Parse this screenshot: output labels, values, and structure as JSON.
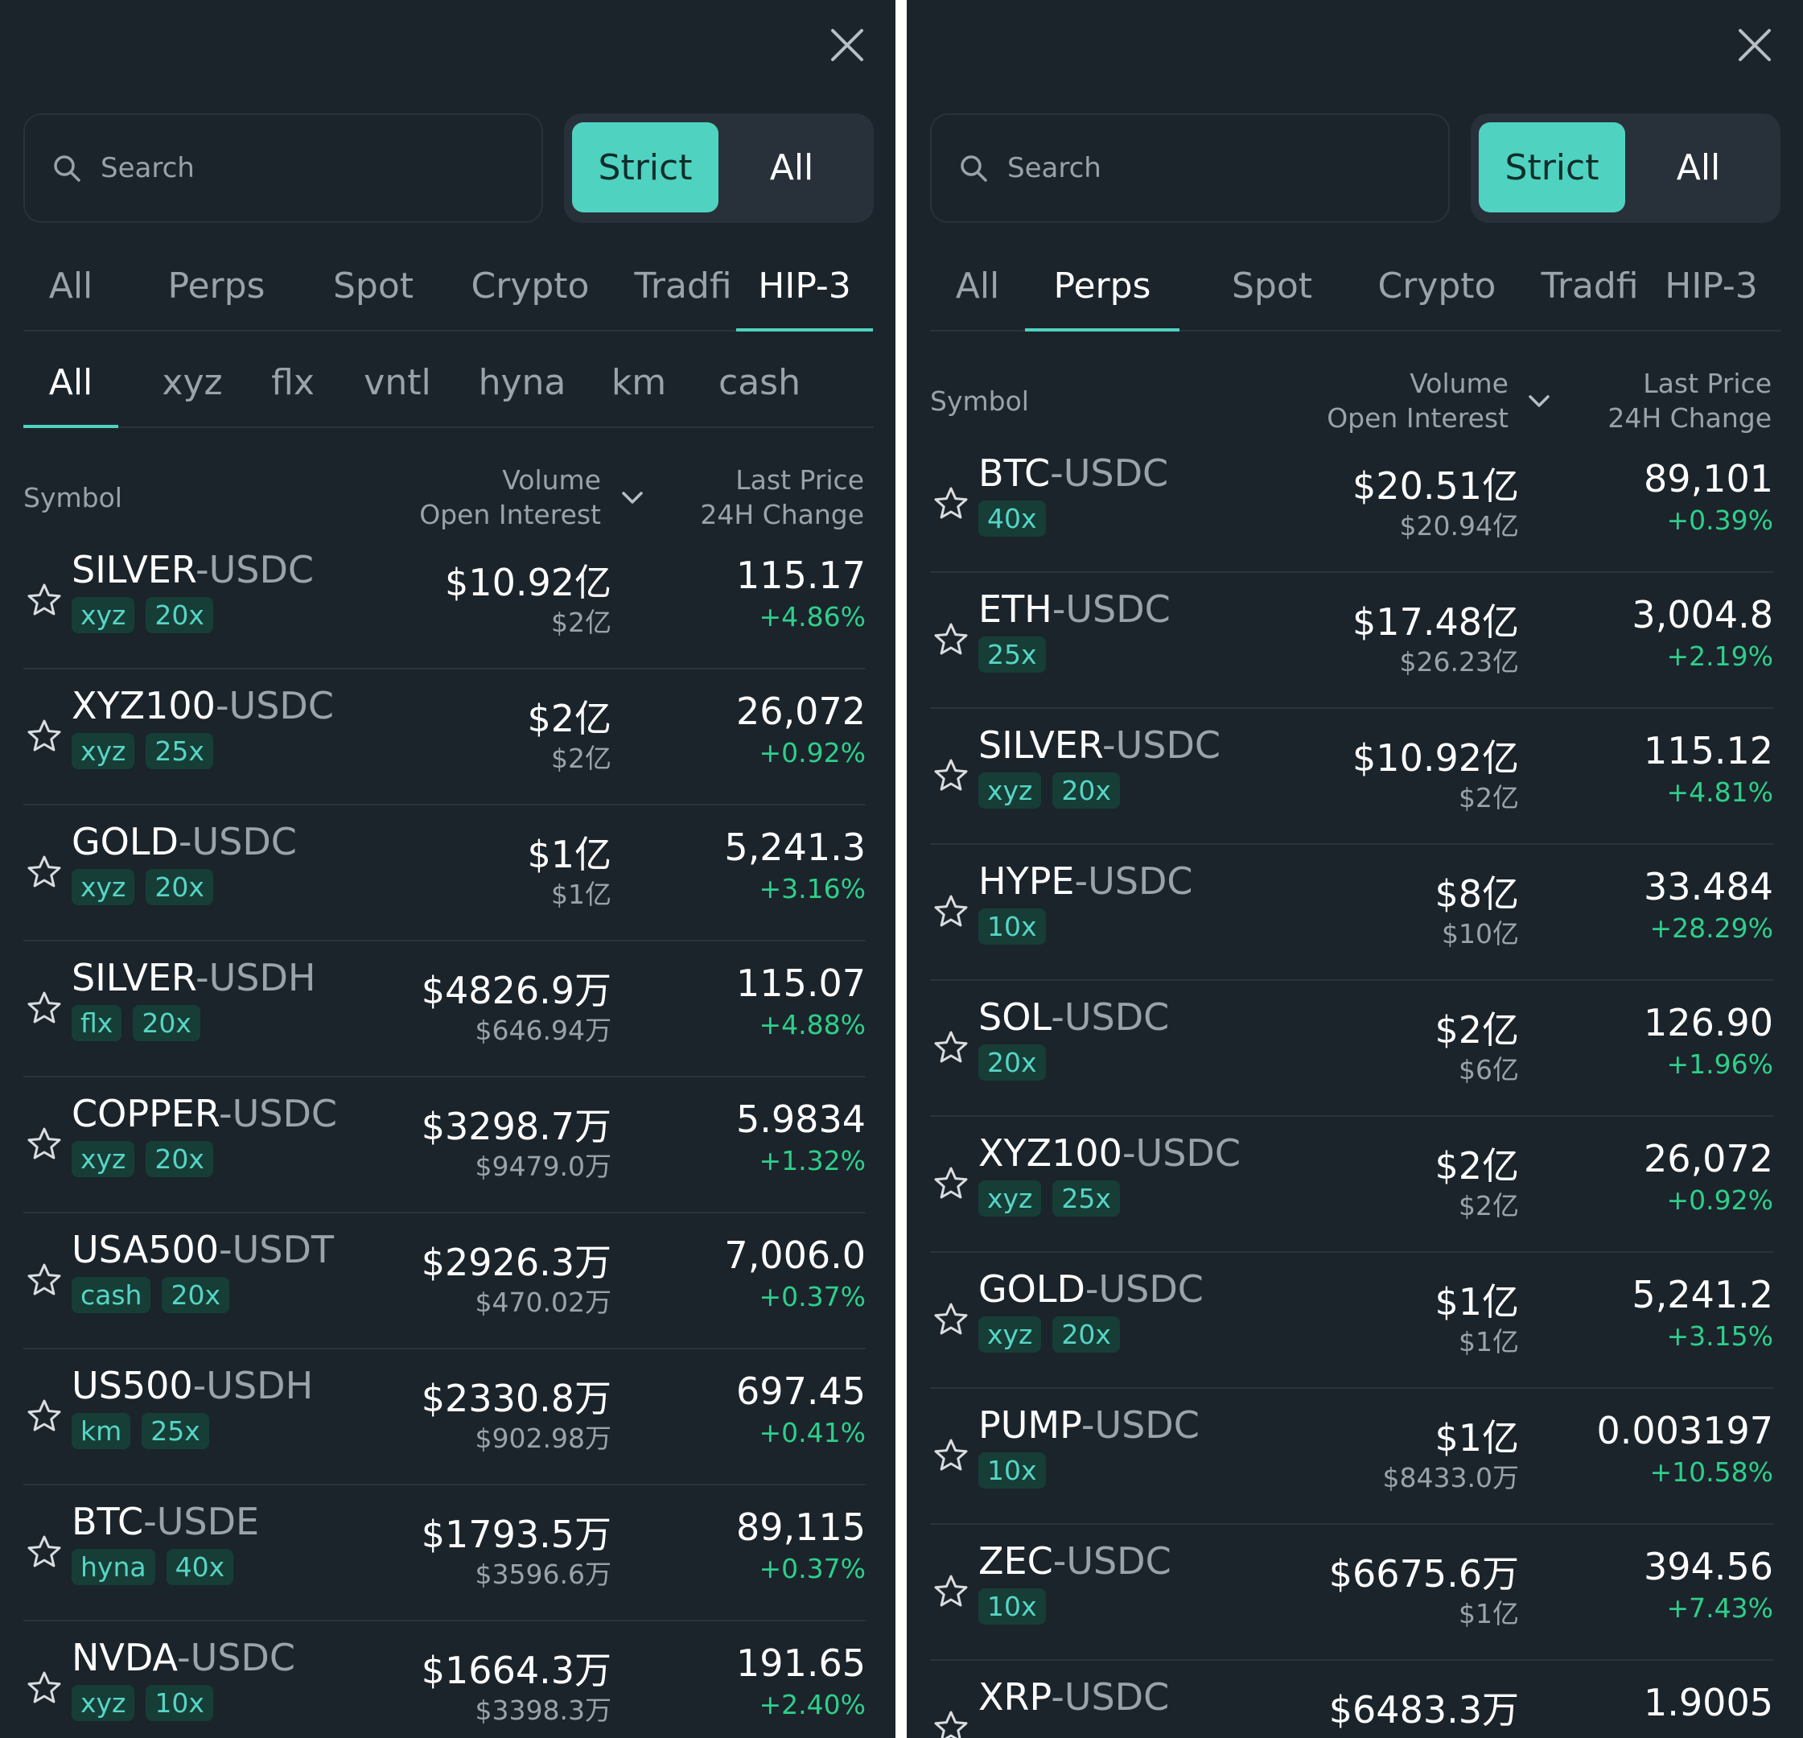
{
  "colors": {
    "background": "#1b242b",
    "accent": "#50d2c1",
    "positive": "#2ecf8a",
    "tag_bg": "#173d37"
  },
  "left": {
    "search": {
      "placeholder": "Search"
    },
    "toggle": {
      "strict": "Strict",
      "all": "All"
    },
    "tabs": [
      "All",
      "Perps",
      "Spot",
      "Crypto",
      "Tradfi",
      "HIP-3"
    ],
    "active_tab": "HIP-3",
    "subtabs": [
      "All",
      "xyz",
      "flx",
      "vntl",
      "hyna",
      "km",
      "cash"
    ],
    "active_subtab": "All",
    "columns": {
      "symbol": "Symbol",
      "volume": "Volume",
      "open_interest": "Open Interest",
      "last_price": "Last Price",
      "change": "24H Change"
    },
    "rows": [
      {
        "base": "SILVER",
        "quote": "USDC",
        "tags": [
          "xyz",
          "20x"
        ],
        "volume": "$10.92亿",
        "oi": "$2亿",
        "price": "115.17",
        "change": "+4.86%"
      },
      {
        "base": "XYZ100",
        "quote": "USDC",
        "tags": [
          "xyz",
          "25x"
        ],
        "volume": "$2亿",
        "oi": "$2亿",
        "price": "26,072",
        "change": "+0.92%"
      },
      {
        "base": "GOLD",
        "quote": "USDC",
        "tags": [
          "xyz",
          "20x"
        ],
        "volume": "$1亿",
        "oi": "$1亿",
        "price": "5,241.3",
        "change": "+3.16%"
      },
      {
        "base": "SILVER",
        "quote": "USDH",
        "tags": [
          "flx",
          "20x"
        ],
        "volume": "$4826.9万",
        "oi": "$646.94万",
        "price": "115.07",
        "change": "+4.88%"
      },
      {
        "base": "COPPER",
        "quote": "USDC",
        "tags": [
          "xyz",
          "20x"
        ],
        "volume": "$3298.7万",
        "oi": "$9479.0万",
        "price": "5.9834",
        "change": "+1.32%"
      },
      {
        "base": "USA500",
        "quote": "USDT",
        "tags": [
          "cash",
          "20x"
        ],
        "volume": "$2926.3万",
        "oi": "$470.02万",
        "price": "7,006.0",
        "change": "+0.37%"
      },
      {
        "base": "US500",
        "quote": "USDH",
        "tags": [
          "km",
          "25x"
        ],
        "volume": "$2330.8万",
        "oi": "$902.98万",
        "price": "697.45",
        "change": "+0.41%"
      },
      {
        "base": "BTC",
        "quote": "USDE",
        "tags": [
          "hyna",
          "40x"
        ],
        "volume": "$1793.5万",
        "oi": "$3596.6万",
        "price": "89,115",
        "change": "+0.37%"
      },
      {
        "base": "NVDA",
        "quote": "USDC",
        "tags": [
          "xyz",
          "10x"
        ],
        "volume": "$1664.3万",
        "oi": "$3398.3万",
        "price": "191.65",
        "change": "+2.40%"
      }
    ]
  },
  "right": {
    "search": {
      "placeholder": "Search"
    },
    "toggle": {
      "strict": "Strict",
      "all": "All"
    },
    "tabs": [
      "All",
      "Perps",
      "Spot",
      "Crypto",
      "Tradfi",
      "HIP-3"
    ],
    "active_tab": "Perps",
    "columns": {
      "symbol": "Symbol",
      "volume": "Volume",
      "open_interest": "Open Interest",
      "last_price": "Last Price",
      "change": "24H Change"
    },
    "rows": [
      {
        "base": "BTC",
        "quote": "USDC",
        "tags": [
          "40x"
        ],
        "volume": "$20.51亿",
        "oi": "$20.94亿",
        "price": "89,101",
        "change": "+0.39%"
      },
      {
        "base": "ETH",
        "quote": "USDC",
        "tags": [
          "25x"
        ],
        "volume": "$17.48亿",
        "oi": "$26.23亿",
        "price": "3,004.8",
        "change": "+2.19%"
      },
      {
        "base": "SILVER",
        "quote": "USDC",
        "tags": [
          "xyz",
          "20x"
        ],
        "volume": "$10.92亿",
        "oi": "$2亿",
        "price": "115.12",
        "change": "+4.81%"
      },
      {
        "base": "HYPE",
        "quote": "USDC",
        "tags": [
          "10x"
        ],
        "volume": "$8亿",
        "oi": "$10亿",
        "price": "33.484",
        "change": "+28.29%"
      },
      {
        "base": "SOL",
        "quote": "USDC",
        "tags": [
          "20x"
        ],
        "volume": "$2亿",
        "oi": "$6亿",
        "price": "126.90",
        "change": "+1.96%"
      },
      {
        "base": "XYZ100",
        "quote": "USDC",
        "tags": [
          "xyz",
          "25x"
        ],
        "volume": "$2亿",
        "oi": "$2亿",
        "price": "26,072",
        "change": "+0.92%"
      },
      {
        "base": "GOLD",
        "quote": "USDC",
        "tags": [
          "xyz",
          "20x"
        ],
        "volume": "$1亿",
        "oi": "$1亿",
        "price": "5,241.2",
        "change": "+3.15%"
      },
      {
        "base": "PUMP",
        "quote": "USDC",
        "tags": [
          "10x"
        ],
        "volume": "$1亿",
        "oi": "$8433.0万",
        "price": "0.003197",
        "change": "+10.58%"
      },
      {
        "base": "ZEC",
        "quote": "USDC",
        "tags": [
          "10x"
        ],
        "volume": "$6675.6万",
        "oi": "$1亿",
        "price": "394.56",
        "change": "+7.43%"
      },
      {
        "base": "XRP",
        "quote": "USDC",
        "tags": [],
        "volume": "$6483.3万",
        "oi": "",
        "price": "1.9005",
        "change": ""
      }
    ]
  }
}
